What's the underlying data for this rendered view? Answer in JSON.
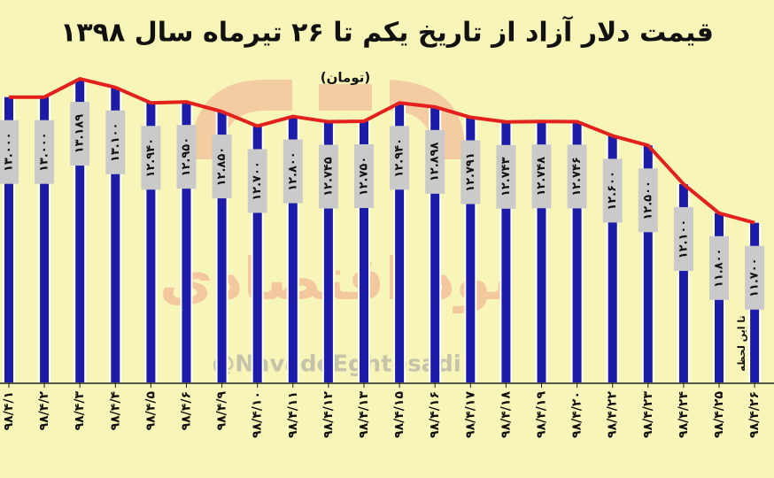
{
  "chart_data": {
    "type": "bar",
    "title": "قیمت دلار آزاد از تاریخ یکم  تا ۲۶ تیرماه سال ۱۳۹۸",
    "subtitle": "(تومان)",
    "annotation": "تا این لحظه",
    "watermark_text": "نود اقتصادی",
    "watermark_handle": "@NavadeEghtesadi",
    "categories": [
      "۹۸/۴/۱",
      "۹۸/۴/۲",
      "۹۸/۴/۳",
      "۹۸/۴/۴",
      "۹۸/۴/۵",
      "۹۸/۴/۶",
      "۹۸/۴/۹",
      "۹۸/۴/۱۰",
      "۹۸/۴/۱۱",
      "۹۸/۴/۱۲",
      "۹۸/۴/۱۳",
      "۹۸/۴/۱۵",
      "۹۸/۴/۱۶",
      "۹۸/۴/۱۷",
      "۹۸/۴/۱۸",
      "۹۸/۴/۱۹",
      "۹۸/۴/۲۰",
      "۹۸/۴/۲۲",
      "۹۸/۴/۲۳",
      "۹۸/۴/۲۴",
      "۹۸/۴/۲۵",
      "۹۸/۴/۲۶"
    ],
    "values": [
      13000,
      13000,
      13189,
      13100,
      12940,
      12950,
      12850,
      12700,
      12800,
      12745,
      12750,
      12940,
      12898,
      12791,
      12743,
      12748,
      12746,
      12600,
      12500,
      12100,
      11800,
      11700
    ],
    "value_labels": [
      "۱۳.۰۰۰",
      "۱۳.۰۰۰",
      "۱۳.۱۸۹",
      "۱۳.۱۰۰",
      "۱۲.۹۴۰",
      "۱۲.۹۵۰",
      "۱۲.۸۵۰",
      "۱۲.۷۰۰",
      "۱۲.۸۰۰",
      "۱۲.۷۴۵",
      "۱۲.۷۵۰",
      "۱۲.۹۴۰",
      "۱۲.۸۹۸",
      "۱۲.۷۹۱",
      "۱۲.۷۴۳",
      "۱۲.۷۴۸",
      "۱۲.۷۴۶",
      "۱۲.۶۰۰",
      "۱۲.۵۰۰",
      "۱۲.۱۰۰",
      "۱۱.۸۰۰",
      "۱۱.۷۰۰"
    ],
    "color": "#1c1ca8",
    "line": true,
    "line_color": "#e3201c",
    "ylim": [
      10050,
      13400
    ]
  }
}
